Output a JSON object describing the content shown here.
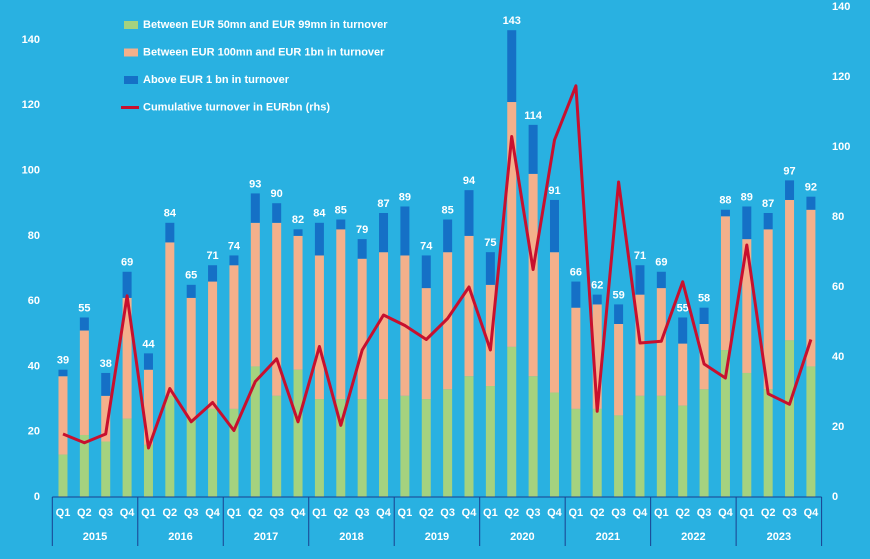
{
  "chart_data": {
    "type": "stacked-bar-line",
    "categories": [
      "Q1",
      "Q2",
      "Q3",
      "Q4",
      "Q1",
      "Q2",
      "Q3",
      "Q4",
      "Q1",
      "Q2",
      "Q3",
      "Q4",
      "Q1",
      "Q2",
      "Q3",
      "Q4",
      "Q1",
      "Q2",
      "Q3",
      "Q4",
      "Q1",
      "Q2",
      "Q3",
      "Q4",
      "Q1",
      "Q2",
      "Q3",
      "Q4",
      "Q1",
      "Q2",
      "Q3",
      "Q4",
      "Q1",
      "Q2",
      "Q3",
      "Q4"
    ],
    "years": [
      "2015",
      "2016",
      "2017",
      "2018",
      "2019",
      "2020",
      "2021",
      "2022",
      "2023"
    ],
    "series": [
      {
        "name": "Between EUR 50mn and EUR 99mn in turnover",
        "color": "#a5d27f",
        "values": [
          13,
          19,
          17,
          24,
          16,
          31,
          24,
          27,
          27,
          40,
          31,
          39,
          30,
          30,
          30,
          30,
          31,
          30,
          33,
          37,
          34,
          46,
          37,
          32,
          27,
          27,
          25,
          31,
          31,
          28,
          33,
          45,
          38,
          33,
          48,
          40
        ]
      },
      {
        "name": "Between EUR 100mn and EUR 1bn in turnover",
        "color": "#f4b08b",
        "values": [
          24,
          32,
          14,
          37,
          23,
          47,
          37,
          39,
          44,
          44,
          53,
          41,
          44,
          52,
          43,
          45,
          43,
          34,
          42,
          43,
          31,
          75,
          62,
          43,
          31,
          32,
          28,
          31,
          33,
          19,
          20,
          41,
          41,
          49,
          43,
          48
        ]
      },
      {
        "name": "Above EUR 1 bn in turnover",
        "color": "#1570c6",
        "values": [
          2,
          4,
          7,
          8,
          5,
          6,
          4,
          5,
          3,
          9,
          6,
          2,
          10,
          3,
          6,
          12,
          15,
          10,
          10,
          14,
          10,
          22,
          15,
          16,
          8,
          3,
          6,
          9,
          5,
          8,
          5,
          2,
          10,
          5,
          6,
          4
        ]
      },
      {
        "name": "Cumulative turnover in EURbn (rhs)",
        "color": "#c8102e",
        "axis": "y2",
        "values": [
          18,
          15.5,
          18,
          57.5,
          14,
          31,
          21.5,
          27,
          19,
          33,
          39.5,
          21.5,
          43,
          20.5,
          42,
          52,
          49,
          45,
          51,
          60,
          42,
          103,
          65,
          102,
          117.5,
          24.5,
          90,
          44,
          44.5,
          61.5,
          38,
          34,
          72,
          29.5,
          26.5,
          45
        ]
      }
    ],
    "stack_labels": [
      39,
      55,
      38,
      69,
      44,
      84,
      65,
      71,
      74,
      93,
      90,
      82,
      84,
      85,
      79,
      87,
      89,
      74,
      85,
      94,
      75,
      143,
      114,
      91,
      66,
      62,
      59,
      71,
      69,
      55,
      58,
      88,
      89,
      87,
      97,
      92
    ],
    "ylim": [
      0,
      140
    ],
    "yticks": [
      0,
      20,
      40,
      60,
      80,
      100,
      120,
      140
    ],
    "y2lim": [
      0,
      140
    ],
    "y2ticks": [
      0,
      20,
      40,
      60,
      80,
      100,
      120,
      140
    ],
    "grid": false
  }
}
